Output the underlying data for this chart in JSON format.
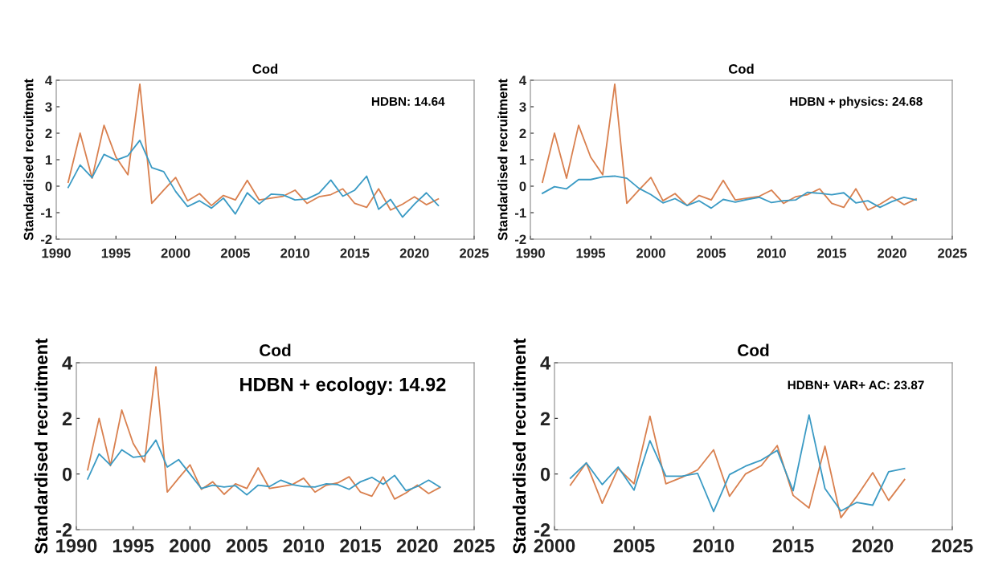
{
  "chart_data": [
    {
      "type": "line",
      "title": "Cod",
      "ylabel": "Standardised recruitment",
      "annotations": [
        "HDBN: 14.64"
      ],
      "xlim": [
        1990,
        2025
      ],
      "xticks": [
        1990,
        1995,
        2000,
        2005,
        2010,
        2015,
        2020,
        2025
      ],
      "ylim": [
        -2,
        4
      ],
      "yticks": [
        -2,
        -1,
        0,
        1,
        2,
        3,
        4
      ],
      "x": [
        1991,
        1992,
        1993,
        1994,
        1995,
        1996,
        1997,
        1998,
        1999,
        2000,
        2001,
        2002,
        2003,
        2004,
        2005,
        2006,
        2007,
        2008,
        2009,
        2010,
        2011,
        2012,
        2013,
        2014,
        2015,
        2016,
        2017,
        2018,
        2019,
        2020,
        2021,
        2022
      ],
      "series": [
        {
          "color": "#d9804f",
          "values": [
            0.15,
            2.0,
            0.3,
            2.3,
            1.1,
            0.43,
            3.85,
            -0.65,
            -0.15,
            0.33,
            -0.55,
            -0.28,
            -0.73,
            -0.35,
            -0.52,
            0.22,
            -0.52,
            -0.45,
            -0.38,
            -0.15,
            -0.65,
            -0.4,
            -0.32,
            -0.1,
            -0.65,
            -0.8,
            -0.1,
            -0.9,
            -0.68,
            -0.4,
            -0.7,
            -0.48
          ]
        },
        {
          "color": "#3a9ac4",
          "values": [
            -0.05,
            0.8,
            0.32,
            1.2,
            0.98,
            1.15,
            1.73,
            0.7,
            0.55,
            -0.2,
            -0.77,
            -0.55,
            -0.83,
            -0.45,
            -1.05,
            -0.25,
            -0.67,
            -0.3,
            -0.33,
            -0.52,
            -0.48,
            -0.27,
            0.23,
            -0.38,
            -0.15,
            0.38,
            -0.87,
            -0.5,
            -1.17,
            -0.68,
            -0.25,
            -0.73
          ]
        }
      ],
      "grid": false,
      "legend": false,
      "marker": "none",
      "line_style": "solid"
    },
    {
      "type": "line",
      "title": "Cod",
      "ylabel": "Standardised recruitment",
      "annotations": [
        "HDBN + physics: 24.68"
      ],
      "xlim": [
        1990,
        2025
      ],
      "xticks": [
        1990,
        1995,
        2000,
        2005,
        2010,
        2015,
        2020,
        2025
      ],
      "ylim": [
        -2,
        4
      ],
      "yticks": [
        -2,
        -1,
        0,
        1,
        2,
        3,
        4
      ],
      "x": [
        1991,
        1992,
        1993,
        1994,
        1995,
        1996,
        1997,
        1998,
        1999,
        2000,
        2001,
        2002,
        2003,
        2004,
        2005,
        2006,
        2007,
        2008,
        2009,
        2010,
        2011,
        2012,
        2013,
        2014,
        2015,
        2016,
        2017,
        2018,
        2019,
        2020,
        2021,
        2022
      ],
      "series": [
        {
          "color": "#d9804f",
          "values": [
            0.15,
            2.0,
            0.3,
            2.3,
            1.1,
            0.43,
            3.85,
            -0.65,
            -0.15,
            0.33,
            -0.55,
            -0.28,
            -0.73,
            -0.35,
            -0.52,
            0.22,
            -0.52,
            -0.45,
            -0.38,
            -0.15,
            -0.65,
            -0.4,
            -0.32,
            -0.1,
            -0.65,
            -0.8,
            -0.1,
            -0.9,
            -0.68,
            -0.4,
            -0.7,
            -0.48
          ]
        },
        {
          "color": "#3a9ac4",
          "values": [
            -0.27,
            -0.02,
            -0.1,
            0.25,
            0.25,
            0.35,
            0.38,
            0.3,
            -0.08,
            -0.32,
            -0.63,
            -0.47,
            -0.73,
            -0.55,
            -0.83,
            -0.5,
            -0.6,
            -0.5,
            -0.42,
            -0.62,
            -0.55,
            -0.52,
            -0.23,
            -0.27,
            -0.32,
            -0.25,
            -0.63,
            -0.55,
            -0.8,
            -0.58,
            -0.42,
            -0.52
          ]
        }
      ],
      "grid": false,
      "legend": false,
      "marker": "none",
      "line_style": "solid"
    },
    {
      "type": "line",
      "title": "Cod",
      "ylabel": "Standardised recruitment",
      "annotations": [
        "HDBN + ecology: 14.92"
      ],
      "xlim": [
        1990,
        2025
      ],
      "xticks": [
        1990,
        1995,
        2000,
        2005,
        2010,
        2015,
        2020,
        2025
      ],
      "ylim": [
        -2,
        4
      ],
      "yticks": [
        -2,
        0,
        2,
        4
      ],
      "x": [
        1991,
        1992,
        1993,
        1994,
        1995,
        1996,
        1997,
        1998,
        1999,
        2000,
        2001,
        2002,
        2003,
        2004,
        2005,
        2006,
        2007,
        2008,
        2009,
        2010,
        2011,
        2012,
        2013,
        2014,
        2015,
        2016,
        2017,
        2018,
        2019,
        2020,
        2021,
        2022
      ],
      "series": [
        {
          "color": "#d9804f",
          "values": [
            0.15,
            2.0,
            0.3,
            2.3,
            1.1,
            0.43,
            3.85,
            -0.65,
            -0.15,
            0.33,
            -0.55,
            -0.28,
            -0.73,
            -0.35,
            -0.52,
            0.22,
            -0.52,
            -0.45,
            -0.38,
            -0.15,
            -0.65,
            -0.4,
            -0.32,
            -0.1,
            -0.65,
            -0.8,
            -0.1,
            -0.9,
            -0.68,
            -0.4,
            -0.7,
            -0.48
          ]
        },
        {
          "color": "#3a9ac4",
          "values": [
            -0.18,
            0.72,
            0.32,
            0.87,
            0.6,
            0.65,
            1.22,
            0.25,
            0.52,
            0.0,
            -0.52,
            -0.4,
            -0.47,
            -0.42,
            -0.75,
            -0.4,
            -0.45,
            -0.22,
            -0.38,
            -0.45,
            -0.47,
            -0.35,
            -0.38,
            -0.55,
            -0.28,
            -0.12,
            -0.37,
            -0.05,
            -0.6,
            -0.45,
            -0.22,
            -0.47
          ]
        }
      ],
      "grid": false,
      "legend": false,
      "marker": "none",
      "line_style": "solid"
    },
    {
      "type": "line",
      "title": "Cod",
      "ylabel": "Standardised recruitment",
      "annotations": [
        "HDBN+ VAR+ AC: 23.87"
      ],
      "xlim": [
        2000,
        2025
      ],
      "xticks": [
        2000,
        2005,
        2010,
        2015,
        2020,
        2025
      ],
      "ylim": [
        -2,
        4
      ],
      "yticks": [
        -2,
        0,
        2,
        4
      ],
      "x": [
        2001,
        2002,
        2003,
        2004,
        2005,
        2006,
        2007,
        2008,
        2009,
        2010,
        2011,
        2012,
        2013,
        2014,
        2015,
        2016,
        2017,
        2018,
        2019,
        2020,
        2021,
        2022
      ],
      "series": [
        {
          "color": "#d9804f",
          "values": [
            -0.4,
            0.4,
            -1.05,
            0.2,
            -0.35,
            2.08,
            -0.35,
            -0.12,
            0.15,
            0.87,
            -0.8,
            0.0,
            0.3,
            1.02,
            -0.77,
            -1.22,
            1.0,
            -1.57,
            -0.8,
            0.05,
            -0.95,
            -0.2
          ]
        },
        {
          "color": "#3a9ac4",
          "values": [
            -0.15,
            0.4,
            -0.38,
            0.25,
            -0.58,
            1.2,
            -0.08,
            -0.08,
            0.02,
            -1.35,
            -0.02,
            0.28,
            0.5,
            0.85,
            -0.6,
            2.12,
            -0.52,
            -1.33,
            -1.02,
            -1.12,
            0.08,
            0.2
          ]
        }
      ],
      "grid": false,
      "legend": false,
      "marker": "none",
      "line_style": "solid"
    }
  ]
}
